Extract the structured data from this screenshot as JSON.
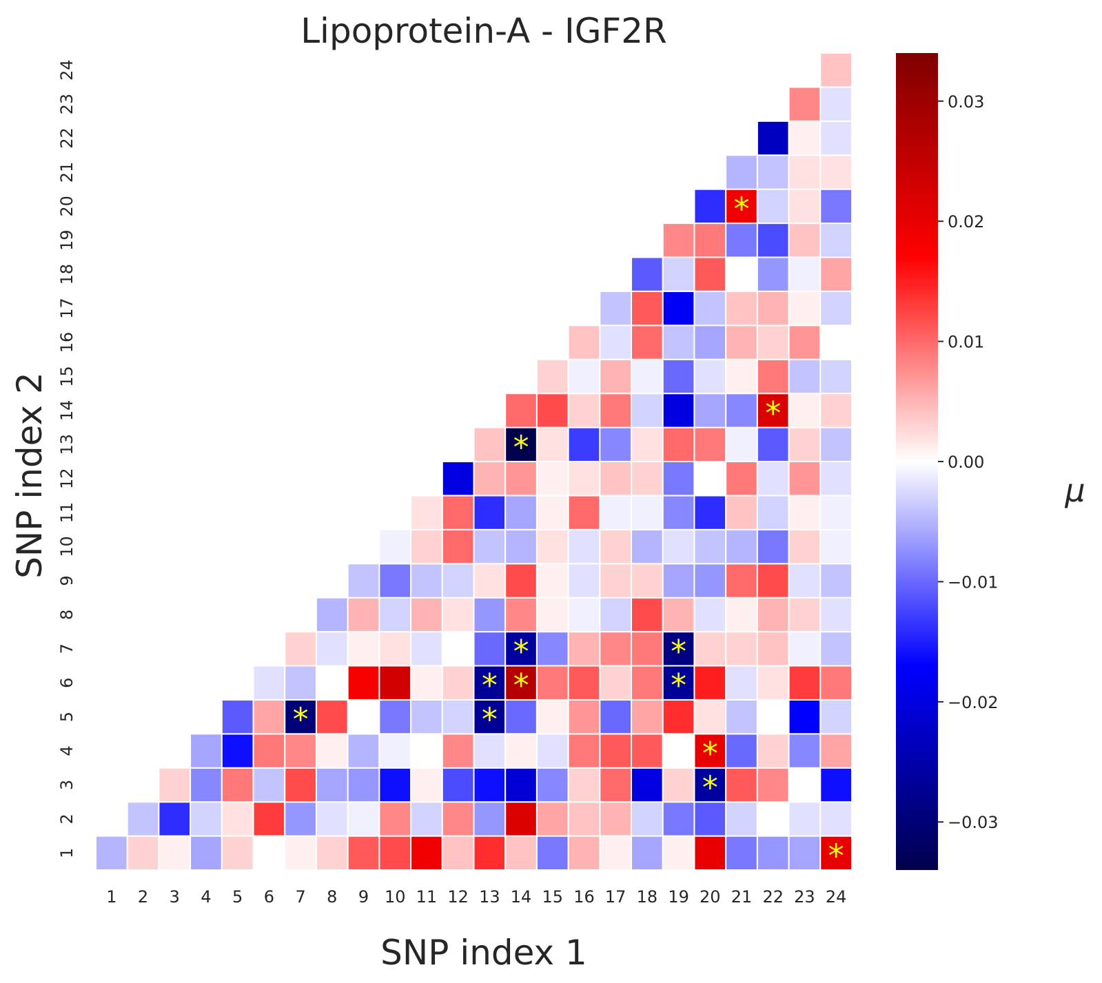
{
  "chart_data": {
    "type": "heatmap",
    "title": "Lipoprotein-A - IGF2R",
    "xlabel": "SNP index 1",
    "ylabel": "SNP index 2",
    "x_tick_labels": [
      "1",
      "2",
      "3",
      "4",
      "5",
      "6",
      "7",
      "8",
      "9",
      "10",
      "11",
      "12",
      "13",
      "14",
      "15",
      "16",
      "17",
      "18",
      "19",
      "20",
      "21",
      "22",
      "23",
      "24"
    ],
    "y_tick_labels": [
      "1",
      "2",
      "3",
      "4",
      "5",
      "6",
      "7",
      "8",
      "9",
      "10",
      "11",
      "12",
      "13",
      "14",
      "15",
      "16",
      "17",
      "18",
      "19",
      "20",
      "21",
      "22",
      "23",
      "24"
    ],
    "mask": "upper triangle (x > y) not drawn",
    "colormap": "seismic",
    "vmin": -0.034,
    "vmax": 0.034,
    "colorbar": {
      "label": "μ",
      "ticks": [
        0.03,
        0.02,
        0.01,
        0.0,
        -0.01,
        -0.02,
        -0.03
      ],
      "tick_labels": [
        "0.03",
        "0.02",
        "0.01",
        "0.00",
        "−0.01",
        "−0.02",
        "−0.03"
      ]
    },
    "significance_marker": "*",
    "values": [
      [
        -0.005,
        0.003,
        0.001,
        -0.006,
        0.003,
        0.0,
        0.001,
        0.003,
        0.011,
        0.012,
        0.019,
        0.004,
        0.014,
        0.004,
        -0.009,
        0.005,
        0.001,
        -0.006,
        0.001,
        0.02,
        -0.009,
        -0.007,
        -0.006,
        0.02
      ],
      [
        null,
        -0.004,
        -0.014,
        -0.003,
        0.002,
        0.013,
        -0.007,
        -0.002,
        -0.001,
        0.008,
        -0.003,
        0.008,
        -0.007,
        0.022,
        0.006,
        0.004,
        0.005,
        -0.003,
        -0.009,
        -0.011,
        -0.003,
        0.0,
        -0.002,
        -0.002
      ],
      [
        null,
        null,
        0.003,
        -0.008,
        0.009,
        -0.004,
        0.012,
        -0.006,
        -0.007,
        -0.016,
        0.001,
        -0.012,
        -0.016,
        -0.021,
        -0.008,
        0.003,
        0.01,
        -0.02,
        0.003,
        -0.026,
        0.011,
        0.008,
        0.0,
        -0.016
      ],
      [
        null,
        null,
        null,
        -0.006,
        -0.016,
        0.009,
        0.008,
        0.001,
        -0.005,
        -0.001,
        0.0,
        0.008,
        -0.002,
        0.001,
        -0.002,
        0.009,
        0.011,
        0.011,
        0.0,
        0.02,
        -0.01,
        0.003,
        -0.008,
        0.006
      ],
      [
        null,
        null,
        null,
        null,
        -0.011,
        0.006,
        -0.03,
        0.012,
        0.0,
        -0.009,
        -0.004,
        -0.003,
        -0.027,
        -0.01,
        0.001,
        0.007,
        -0.01,
        0.006,
        0.014,
        0.002,
        -0.004,
        0.0,
        -0.017,
        -0.003
      ],
      [
        null,
        null,
        null,
        null,
        null,
        -0.002,
        -0.004,
        0.0,
        0.018,
        0.023,
        0.001,
        0.003,
        -0.027,
        0.027,
        0.009,
        0.011,
        0.003,
        0.009,
        -0.027,
        0.015,
        -0.002,
        0.002,
        0.013,
        0.009
      ],
      [
        null,
        null,
        null,
        null,
        null,
        null,
        0.003,
        -0.002,
        0.001,
        0.002,
        -0.002,
        0.0,
        -0.01,
        -0.026,
        -0.008,
        0.005,
        0.008,
        0.009,
        -0.029,
        0.003,
        0.003,
        0.004,
        -0.001,
        -0.004
      ],
      [
        null,
        null,
        null,
        null,
        null,
        null,
        null,
        -0.005,
        0.005,
        -0.003,
        0.005,
        0.002,
        -0.007,
        0.008,
        0.001,
        -0.001,
        -0.003,
        0.012,
        0.005,
        -0.002,
        0.001,
        0.005,
        0.003,
        -0.002
      ],
      [
        null,
        null,
        null,
        null,
        null,
        null,
        null,
        null,
        -0.004,
        -0.009,
        -0.004,
        -0.003,
        0.002,
        0.012,
        0.001,
        -0.002,
        0.003,
        0.003,
        -0.006,
        -0.007,
        0.01,
        0.012,
        -0.002,
        -0.004
      ],
      [
        null,
        null,
        null,
        null,
        null,
        null,
        null,
        null,
        null,
        -0.001,
        0.003,
        0.01,
        -0.004,
        -0.005,
        0.002,
        -0.002,
        0.003,
        -0.005,
        -0.002,
        -0.004,
        -0.005,
        -0.009,
        0.003,
        -0.001
      ],
      [
        null,
        null,
        null,
        null,
        null,
        null,
        null,
        null,
        null,
        null,
        0.002,
        0.01,
        -0.014,
        -0.006,
        0.001,
        0.01,
        -0.001,
        -0.001,
        -0.008,
        -0.014,
        0.004,
        -0.003,
        0.001,
        -0.001
      ],
      [
        null,
        null,
        null,
        null,
        null,
        null,
        null,
        null,
        null,
        null,
        null,
        -0.02,
        0.005,
        0.007,
        0.001,
        0.002,
        0.004,
        0.003,
        -0.009,
        0.0,
        0.009,
        -0.002,
        0.007,
        -0.002
      ],
      [
        null,
        null,
        null,
        null,
        null,
        null,
        null,
        null,
        null,
        null,
        null,
        null,
        0.004,
        -0.034,
        0.002,
        -0.013,
        -0.008,
        0.002,
        0.01,
        0.009,
        -0.001,
        -0.011,
        0.003,
        -0.004
      ],
      [
        null,
        null,
        null,
        null,
        null,
        null,
        null,
        null,
        null,
        null,
        null,
        null,
        null,
        0.01,
        0.012,
        0.003,
        0.009,
        -0.003,
        -0.02,
        -0.006,
        -0.008,
        0.022,
        0.001,
        0.003
      ],
      [
        null,
        null,
        null,
        null,
        null,
        null,
        null,
        null,
        null,
        null,
        null,
        null,
        null,
        null,
        0.003,
        -0.001,
        0.005,
        -0.001,
        -0.01,
        -0.002,
        0.001,
        0.009,
        -0.004,
        -0.003
      ],
      [
        null,
        null,
        null,
        null,
        null,
        null,
        null,
        null,
        null,
        null,
        null,
        null,
        null,
        null,
        null,
        0.004,
        -0.002,
        0.01,
        -0.004,
        -0.006,
        0.005,
        0.003,
        0.007,
        0.0
      ],
      [
        null,
        null,
        null,
        null,
        null,
        null,
        null,
        null,
        null,
        null,
        null,
        null,
        null,
        null,
        null,
        null,
        -0.004,
        0.011,
        -0.018,
        -0.004,
        0.004,
        0.005,
        0.001,
        -0.003
      ],
      [
        null,
        null,
        null,
        null,
        null,
        null,
        null,
        null,
        null,
        null,
        null,
        null,
        null,
        null,
        null,
        null,
        null,
        -0.011,
        -0.003,
        0.011,
        0.0,
        -0.007,
        -0.001,
        0.006
      ],
      [
        null,
        null,
        null,
        null,
        null,
        null,
        null,
        null,
        null,
        null,
        null,
        null,
        null,
        null,
        null,
        null,
        null,
        null,
        0.008,
        0.009,
        -0.009,
        -0.012,
        0.004,
        -0.003
      ],
      [
        null,
        null,
        null,
        null,
        null,
        null,
        null,
        null,
        null,
        null,
        null,
        null,
        null,
        null,
        null,
        null,
        null,
        null,
        null,
        -0.014,
        0.019,
        -0.003,
        0.002,
        -0.009
      ],
      [
        null,
        null,
        null,
        null,
        null,
        null,
        null,
        null,
        null,
        null,
        null,
        null,
        null,
        null,
        null,
        null,
        null,
        null,
        null,
        null,
        -0.005,
        -0.004,
        0.002,
        0.002
      ],
      [
        null,
        null,
        null,
        null,
        null,
        null,
        null,
        null,
        null,
        null,
        null,
        null,
        null,
        null,
        null,
        null,
        null,
        null,
        null,
        null,
        null,
        -0.023,
        0.001,
        -0.002
      ],
      [
        null,
        null,
        null,
        null,
        null,
        null,
        null,
        null,
        null,
        null,
        null,
        null,
        null,
        null,
        null,
        null,
        null,
        null,
        null,
        null,
        null,
        null,
        0.008,
        -0.002
      ],
      [
        null,
        null,
        null,
        null,
        null,
        null,
        null,
        null,
        null,
        null,
        null,
        null,
        null,
        null,
        null,
        null,
        null,
        null,
        null,
        null,
        null,
        null,
        null,
        0.004
      ]
    ],
    "significant_cells": [
      {
        "x": 24,
        "y": 1
      },
      {
        "x": 20,
        "y": 3
      },
      {
        "x": 20,
        "y": 4
      },
      {
        "x": 7,
        "y": 5
      },
      {
        "x": 13,
        "y": 5
      },
      {
        "x": 13,
        "y": 6
      },
      {
        "x": 14,
        "y": 6
      },
      {
        "x": 19,
        "y": 6
      },
      {
        "x": 14,
        "y": 7
      },
      {
        "x": 19,
        "y": 7
      },
      {
        "x": 14,
        "y": 13
      },
      {
        "x": 22,
        "y": 14
      },
      {
        "x": 21,
        "y": 20
      }
    ]
  }
}
